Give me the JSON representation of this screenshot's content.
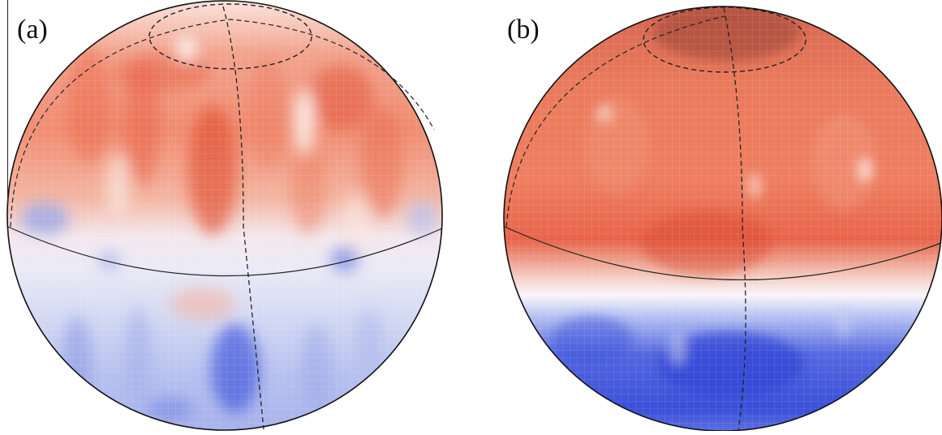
{
  "figure": {
    "panels": [
      {
        "label": "(a)"
      },
      {
        "label": "(b)"
      }
    ],
    "colors": {
      "positive": "#e0472e",
      "negative": "#2b3fd6",
      "background": "#ffffff",
      "outline": "#111111"
    }
  }
}
